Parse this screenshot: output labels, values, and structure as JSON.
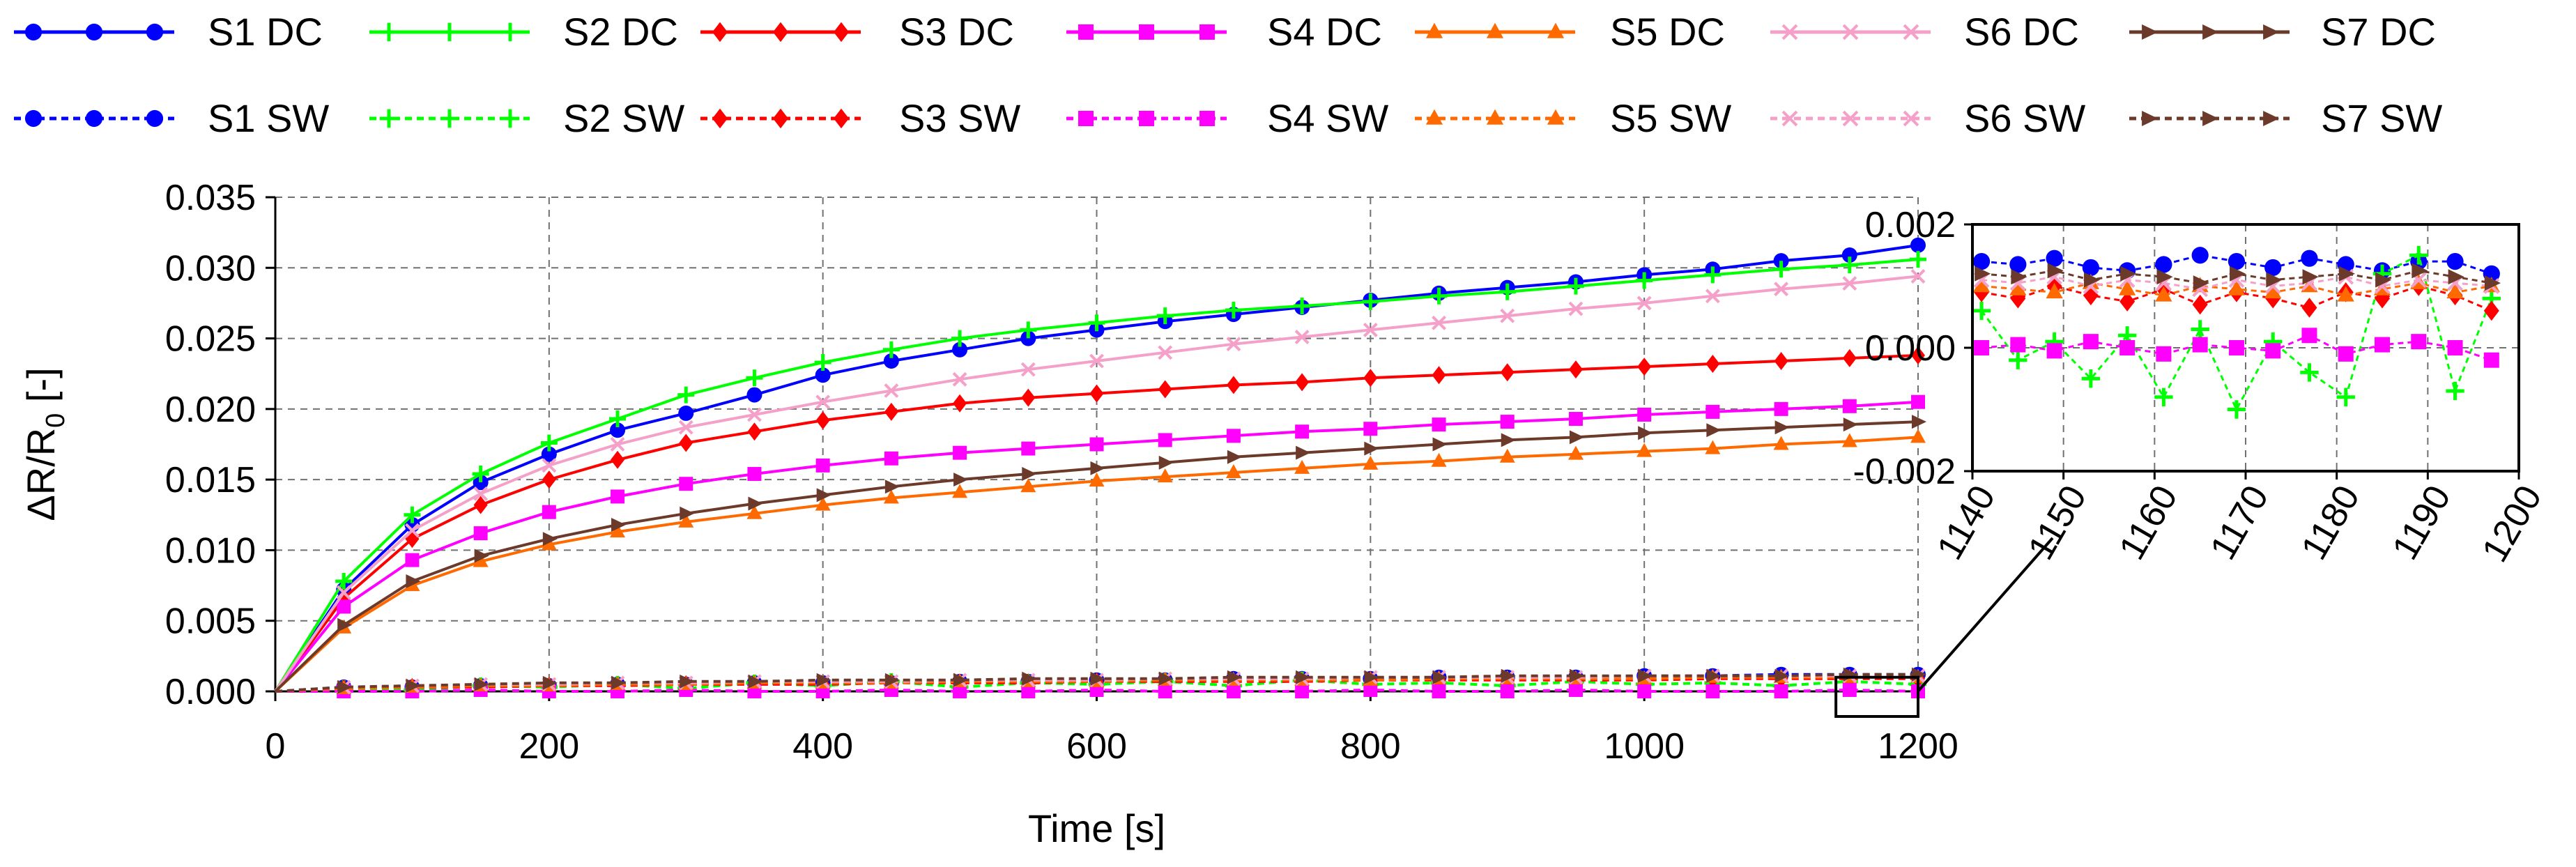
{
  "chart_data": [
    {
      "type": "line",
      "panel": "main",
      "title": "",
      "xlabel": "Time [s]",
      "ylabel_main": "ΔR/R",
      "ylabel_sub": "0",
      "ylabel_unit": " [-]",
      "xlim": [
        0,
        1200
      ],
      "ylim": [
        0,
        0.035
      ],
      "xticks": [
        0,
        200,
        400,
        600,
        800,
        1000,
        1200
      ],
      "xtick_labels": [
        "0",
        "200",
        "400",
        "600",
        "800",
        "1000",
        "1200"
      ],
      "yticks": [
        0,
        0.005,
        0.01,
        0.015,
        0.02,
        0.025,
        0.03,
        0.035
      ],
      "ytick_labels": [
        "0.000",
        "0.005",
        "0.010",
        "0.015",
        "0.020",
        "0.025",
        "0.030",
        "0.035"
      ],
      "grid": true,
      "x": [
        0,
        50,
        100,
        150,
        200,
        250,
        300,
        350,
        400,
        450,
        500,
        550,
        600,
        650,
        700,
        750,
        800,
        850,
        900,
        950,
        1000,
        1050,
        1100,
        1150,
        1200
      ],
      "series": [
        {
          "name": "S1 DC",
          "color": "#0000ff",
          "marker": "circle",
          "dash": false,
          "values": [
            0,
            0.0072,
            0.0118,
            0.0148,
            0.0168,
            0.0185,
            0.0197,
            0.021,
            0.0224,
            0.0234,
            0.0242,
            0.025,
            0.0256,
            0.0262,
            0.0267,
            0.0272,
            0.0277,
            0.0282,
            0.0286,
            0.029,
            0.0295,
            0.0299,
            0.0305,
            0.0309,
            0.0316
          ]
        },
        {
          "name": "S2 DC",
          "color": "#00ff00",
          "marker": "plus",
          "dash": false,
          "values": [
            0,
            0.0078,
            0.0125,
            0.0154,
            0.0176,
            0.0193,
            0.021,
            0.0222,
            0.0233,
            0.0242,
            0.025,
            0.0256,
            0.0261,
            0.0266,
            0.027,
            0.0273,
            0.0276,
            0.028,
            0.0283,
            0.0287,
            0.0291,
            0.0295,
            0.0299,
            0.0302,
            0.0306
          ]
        },
        {
          "name": "S3 DC",
          "color": "#ff0000",
          "marker": "diamond",
          "dash": false,
          "values": [
            0,
            0.0066,
            0.0108,
            0.0132,
            0.015,
            0.0164,
            0.0176,
            0.0184,
            0.0192,
            0.0198,
            0.0204,
            0.0208,
            0.0211,
            0.0214,
            0.0217,
            0.0219,
            0.0222,
            0.0224,
            0.0226,
            0.0228,
            0.023,
            0.0232,
            0.0234,
            0.0236,
            0.0238
          ]
        },
        {
          "name": "S4 DC",
          "color": "#ff00ff",
          "marker": "square",
          "dash": false,
          "values": [
            0,
            0.006,
            0.0093,
            0.0112,
            0.0127,
            0.0138,
            0.0147,
            0.0154,
            0.016,
            0.0165,
            0.0169,
            0.0172,
            0.0175,
            0.0178,
            0.0181,
            0.0184,
            0.0186,
            0.0189,
            0.0191,
            0.0193,
            0.0196,
            0.0198,
            0.02,
            0.0202,
            0.0205
          ]
        },
        {
          "name": "S5 DC",
          "color": "#ff6a00",
          "marker": "triangle",
          "dash": false,
          "values": [
            0,
            0.0045,
            0.0075,
            0.0092,
            0.0104,
            0.0113,
            0.012,
            0.0126,
            0.0132,
            0.0137,
            0.0141,
            0.0145,
            0.0149,
            0.0152,
            0.0155,
            0.0158,
            0.0161,
            0.0163,
            0.0166,
            0.0168,
            0.017,
            0.0172,
            0.0175,
            0.0177,
            0.018
          ]
        },
        {
          "name": "S6 DC",
          "color": "#f4a0c8",
          "marker": "x",
          "dash": false,
          "values": [
            0,
            0.007,
            0.0114,
            0.014,
            0.016,
            0.0175,
            0.0187,
            0.0196,
            0.0205,
            0.0213,
            0.0221,
            0.0228,
            0.0234,
            0.024,
            0.0246,
            0.0251,
            0.0256,
            0.0261,
            0.0266,
            0.0271,
            0.0275,
            0.028,
            0.0285,
            0.0289,
            0.0294
          ]
        },
        {
          "name": "S7 DC",
          "color": "#6b3a2a",
          "marker": "arrow",
          "dash": false,
          "values": [
            0,
            0.0047,
            0.0078,
            0.0096,
            0.0108,
            0.0118,
            0.0126,
            0.0133,
            0.0139,
            0.0145,
            0.015,
            0.0154,
            0.0158,
            0.0162,
            0.0166,
            0.0169,
            0.0172,
            0.0175,
            0.0178,
            0.018,
            0.0183,
            0.0185,
            0.0187,
            0.0189,
            0.0191
          ]
        },
        {
          "name": "S1 SW",
          "color": "#0000ff",
          "marker": "circle",
          "dash": true,
          "values": [
            0,
            0.0003,
            0.0003,
            0.0004,
            0.0004,
            0.0005,
            0.0005,
            0.0006,
            0.0006,
            0.0006,
            0.0007,
            0.0007,
            0.0008,
            0.0008,
            0.0009,
            0.0009,
            0.0009,
            0.001,
            0.001,
            0.001,
            0.0011,
            0.0011,
            0.0012,
            0.0012,
            0.0012
          ]
        },
        {
          "name": "S2 SW",
          "color": "#00ff00",
          "marker": "plus",
          "dash": true,
          "values": [
            0,
            0.0002,
            0.0001,
            0.0004,
            0.0003,
            0.0005,
            0.0002,
            0.0006,
            0.0004,
            0.0007,
            0.0003,
            0.0006,
            0.0005,
            0.0007,
            0.0004,
            0.0008,
            0.0005,
            0.0006,
            0.0004,
            0.0007,
            0.0005,
            0.0006,
            0.0004,
            0.0007,
            0.0005
          ]
        },
        {
          "name": "S3 SW",
          "color": "#ff0000",
          "marker": "diamond",
          "dash": true,
          "values": [
            0,
            0.0002,
            0.0003,
            0.0003,
            0.0004,
            0.0004,
            0.0005,
            0.0005,
            0.0005,
            0.0006,
            0.0006,
            0.0006,
            0.0007,
            0.0007,
            0.0007,
            0.0007,
            0.0008,
            0.0008,
            0.0008,
            0.0008,
            0.0008,
            0.0009,
            0.0009,
            0.0009,
            0.0009
          ]
        },
        {
          "name": "S4 SW",
          "color": "#ff00ff",
          "marker": "square",
          "dash": true,
          "values": [
            0,
            0.0,
            0.0,
            0.0001,
            0.0,
            0.0,
            0.0001,
            0.0,
            0.0,
            0.0001,
            0.0,
            0.0,
            0.0001,
            0.0,
            0.0,
            0.0,
            0.0001,
            0.0,
            0.0,
            0.0001,
            0.0,
            0.0,
            0.0,
            0.0001,
            0.0
          ]
        },
        {
          "name": "S5 SW",
          "color": "#ff6a00",
          "marker": "triangle",
          "dash": true,
          "values": [
            0,
            0.0002,
            0.0003,
            0.0004,
            0.0004,
            0.0005,
            0.0005,
            0.0006,
            0.0006,
            0.0006,
            0.0007,
            0.0007,
            0.0007,
            0.0008,
            0.0008,
            0.0008,
            0.0008,
            0.0009,
            0.0009,
            0.0009,
            0.0009,
            0.001,
            0.001,
            0.001,
            0.001
          ]
        },
        {
          "name": "S6 SW",
          "color": "#f4a0c8",
          "marker": "x",
          "dash": true,
          "values": [
            0,
            0.0003,
            0.0004,
            0.0005,
            0.0005,
            0.0006,
            0.0006,
            0.0007,
            0.0007,
            0.0007,
            0.0008,
            0.0008,
            0.0008,
            0.0009,
            0.0009,
            0.0009,
            0.001,
            0.001,
            0.001,
            0.001,
            0.0011,
            0.0011,
            0.0011,
            0.0011,
            0.0011
          ]
        },
        {
          "name": "S7 SW",
          "color": "#6b3a2a",
          "marker": "arrow",
          "dash": true,
          "values": [
            0,
            0.0003,
            0.0004,
            0.0005,
            0.0006,
            0.0006,
            0.0007,
            0.0007,
            0.0008,
            0.0008,
            0.0008,
            0.0009,
            0.0009,
            0.0009,
            0.001,
            0.001,
            0.001,
            0.001,
            0.0011,
            0.0011,
            0.0011,
            0.0011,
            0.0011,
            0.0012,
            0.0012
          ]
        }
      ]
    },
    {
      "type": "line",
      "panel": "inset",
      "title": "",
      "xlim": [
        1140,
        1200
      ],
      "ylim": [
        -0.002,
        0.002
      ],
      "xticks": [
        1140,
        1150,
        1160,
        1170,
        1180,
        1190,
        1200
      ],
      "xtick_labels": [
        "1140",
        "1150",
        "1160",
        "1170",
        "1180",
        "1190",
        "1200"
      ],
      "yticks": [
        -0.002,
        0,
        0.002
      ],
      "ytick_labels": [
        "-0.002",
        "0.000",
        "0.002"
      ],
      "grid": true,
      "x": [
        1141,
        1145,
        1149,
        1153,
        1157,
        1161,
        1165,
        1169,
        1173,
        1177,
        1181,
        1185,
        1189,
        1193,
        1197
      ],
      "series": [
        {
          "name": "S1 SW",
          "values": [
            0.0014,
            0.00135,
            0.00145,
            0.0013,
            0.00125,
            0.00135,
            0.0015,
            0.0014,
            0.0013,
            0.00145,
            0.00135,
            0.00125,
            0.0014,
            0.0014,
            0.0012
          ]
        },
        {
          "name": "S2 SW",
          "values": [
            0.0006,
            -0.0002,
            0.0001,
            -0.0005,
            0.0002,
            -0.0008,
            0.0003,
            -0.001,
            0.0001,
            -0.0004,
            -0.0008,
            0.0012,
            0.0015,
            -0.0007,
            0.0008
          ]
        },
        {
          "name": "S3 SW",
          "values": [
            0.0009,
            0.0008,
            0.001,
            0.00085,
            0.00075,
            0.00095,
            0.0007,
            0.0009,
            0.0008,
            0.00065,
            0.0009,
            0.0008,
            0.001,
            0.00085,
            0.0006
          ]
        },
        {
          "name": "S4 SW",
          "values": [
            0.0,
            5e-05,
            -5e-05,
            0.0001,
            0.0,
            -0.0001,
            5e-05,
            0.0,
            -5e-05,
            0.0002,
            -0.0001,
            5e-05,
            0.0001,
            0.0,
            -0.0002
          ]
        },
        {
          "name": "S5 SW",
          "values": [
            0.001,
            0.00095,
            0.0009,
            0.00105,
            0.00095,
            0.00085,
            0.001,
            0.00095,
            0.0009,
            0.001,
            0.00085,
            0.00095,
            0.00105,
            0.0009,
            0.001
          ]
        },
        {
          "name": "S6 SW",
          "values": [
            0.0011,
            0.00105,
            0.00115,
            0.001,
            0.0011,
            0.00105,
            0.00095,
            0.0011,
            0.001,
            0.00105,
            0.00115,
            0.001,
            0.0011,
            0.00105,
            0.001
          ]
        },
        {
          "name": "S7 SW",
          "values": [
            0.0012,
            0.00115,
            0.00125,
            0.0011,
            0.0012,
            0.00115,
            0.00105,
            0.0012,
            0.0011,
            0.00115,
            0.0012,
            0.0011,
            0.00125,
            0.00115,
            0.00105
          ]
        }
      ]
    }
  ]
}
